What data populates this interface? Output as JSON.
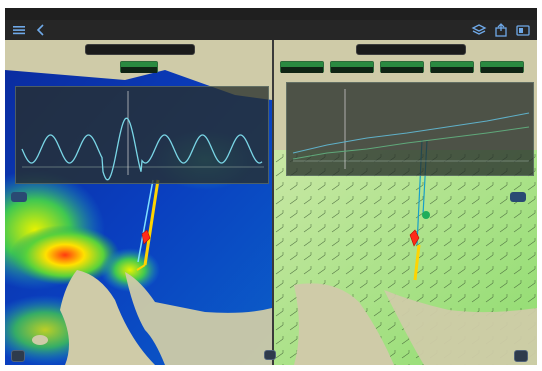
{
  "status_bar": {
    "left": "",
    "center": "",
    "right": ""
  },
  "toolbar": {
    "clock": "",
    "clock_sub": "",
    "icons": [
      "menu-icon",
      "layers-icon",
      "share-icon",
      "settings-icon"
    ]
  },
  "left_panel": {
    "model_select": "",
    "info_chip": {
      "label": "",
      "value": ""
    },
    "side_badge": ""
  },
  "right_panel": {
    "model_select": "",
    "chips": [
      {
        "label": "",
        "value": ""
      },
      {
        "label": "",
        "value": ""
      },
      {
        "label": "",
        "value": ""
      },
      {
        "label": "",
        "value": ""
      },
      {
        "label": "",
        "value": ""
      }
    ],
    "side_badge": ""
  },
  "colors": {
    "land": "#cfcba8",
    "water_low": "#0c2a9e",
    "water_high": "#ffe000",
    "wind_green": "#86d96a",
    "chart_line": "#7ad6e6",
    "track": "#ffd400",
    "boat": "#ff2a1a"
  }
}
